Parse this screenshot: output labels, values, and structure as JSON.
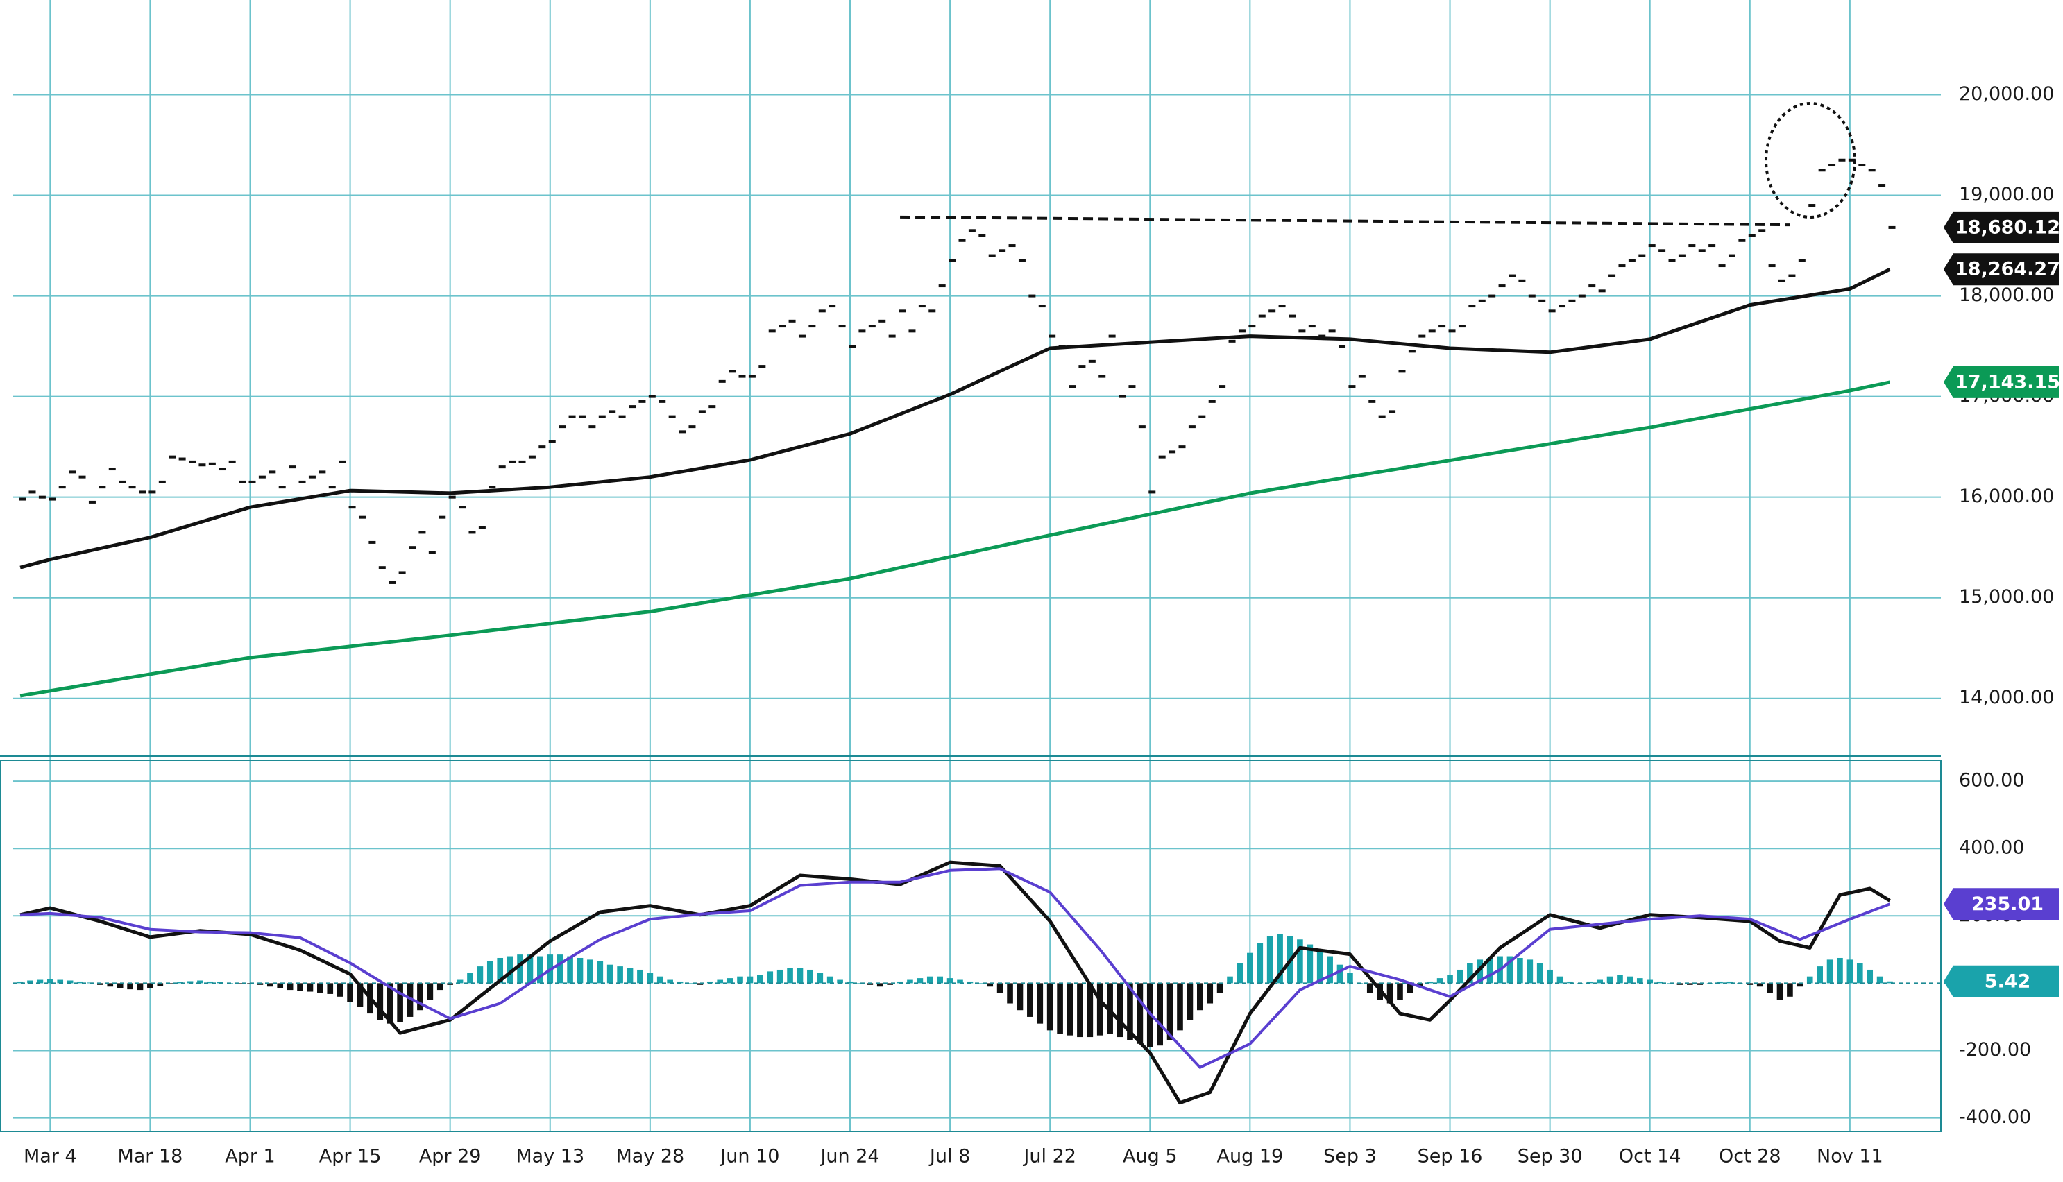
{
  "chart_data": [
    {
      "type": "stock",
      "xlim": [
        -3.7,
        189.1
      ],
      "xticks": [
        {
          "value": 0,
          "label": "Mar 4"
        },
        {
          "value": 10,
          "label": "Mar 18"
        },
        {
          "value": 20,
          "label": "Apr 1"
        },
        {
          "value": 30,
          "label": "Apr 15"
        },
        {
          "value": 40,
          "label": "Apr 29"
        },
        {
          "value": 50,
          "label": "May 13"
        },
        {
          "value": 60,
          "label": "May 28"
        },
        {
          "value": 70,
          "label": "Jun 10"
        },
        {
          "value": 80,
          "label": "Jun 24"
        },
        {
          "value": 90,
          "label": "Jul 8"
        },
        {
          "value": 100,
          "label": "Jul 22"
        },
        {
          "value": 110,
          "label": "Aug 5"
        },
        {
          "value": 120,
          "label": "Aug 19"
        },
        {
          "value": 130,
          "label": "Sep 3"
        },
        {
          "value": 140,
          "label": "Sep 16"
        },
        {
          "value": 150,
          "label": "Sep 30"
        },
        {
          "value": 160,
          "label": "Oct 14"
        },
        {
          "value": 170,
          "label": "Oct 28"
        },
        {
          "value": 180,
          "label": "Nov 11"
        }
      ],
      "ylim": [
        13426,
        20941
      ],
      "yticks": [
        {
          "value": 14000,
          "label": "14,000.00"
        },
        {
          "value": 15000,
          "label": "15,000.00"
        },
        {
          "value": 16000,
          "label": "16,000.00"
        },
        {
          "value": 17000,
          "label": "17,000.00"
        },
        {
          "value": 18000,
          "label": "18,000.00"
        },
        {
          "value": 19000,
          "label": "19,000.00"
        },
        {
          "value": 20000,
          "label": "20,000.00"
        }
      ],
      "grid": true,
      "grid_color": "#6cc3cc",
      "series": [
        {
          "marker": "tick",
          "color": "#111111",
          "last_label": "18,680.12",
          "x": [
            -3,
            -2,
            -1,
            0,
            1,
            2,
            3,
            4,
            5,
            6,
            7,
            8,
            9,
            10,
            11,
            12,
            13,
            14,
            15,
            16,
            17,
            18,
            19,
            20,
            21,
            22,
            23,
            24,
            25,
            26,
            27,
            28,
            29,
            30,
            31,
            32,
            33,
            34,
            35,
            36,
            37,
            38,
            39,
            40,
            41,
            42,
            43,
            44,
            45,
            46,
            47,
            48,
            49,
            50,
            51,
            52,
            53,
            54,
            55,
            56,
            57,
            58,
            59,
            60,
            61,
            62,
            63,
            64,
            65,
            66,
            67,
            68,
            69,
            70,
            71,
            72,
            73,
            74,
            75,
            76,
            77,
            78,
            79,
            80,
            81,
            82,
            83,
            84,
            85,
            86,
            87,
            88,
            89,
            90,
            91,
            92,
            93,
            94,
            95,
            96,
            97,
            98,
            99,
            100,
            101,
            102,
            103,
            104,
            105,
            106,
            107,
            108,
            109,
            110,
            111,
            112,
            113,
            114,
            115,
            116,
            117,
            118,
            119,
            120,
            121,
            122,
            123,
            124,
            125,
            126,
            127,
            128,
            129,
            130,
            131,
            132,
            133,
            134,
            135,
            136,
            137,
            138,
            139,
            140,
            141,
            142,
            143,
            144,
            145,
            146,
            147,
            148,
            149,
            150,
            151,
            152,
            153,
            154,
            155,
            156,
            157,
            158,
            159,
            160,
            161,
            162,
            163,
            164,
            165,
            166,
            167,
            168,
            169,
            170,
            171,
            172,
            173,
            174,
            175,
            176,
            177,
            178,
            179,
            180,
            181,
            182,
            183,
            184
          ],
          "values": [
            15980,
            16050,
            16000,
            15980,
            16100,
            16250,
            16200,
            15950,
            16100,
            16280,
            16150,
            16100,
            16050,
            16050,
            16150,
            16400,
            16380,
            16350,
            16320,
            16330,
            16280,
            16350,
            16150,
            16150,
            16200,
            16250,
            16100,
            16300,
            16150,
            16200,
            16250,
            16100,
            16350,
            15900,
            15800,
            15550,
            15300,
            15150,
            15250,
            15500,
            15650,
            15450,
            15800,
            16000,
            15900,
            15650,
            15700,
            16100,
            16300,
            16350,
            16350,
            16400,
            16500,
            16550,
            16700,
            16800,
            16800,
            16700,
            16800,
            16850,
            16800,
            16900,
            16950,
            17000,
            16950,
            16800,
            16650,
            16700,
            16850,
            16900,
            17150,
            17250,
            17200,
            17200,
            17300,
            17650,
            17700,
            17750,
            17600,
            17700,
            17850,
            17900,
            17700,
            17500,
            17650,
            17700,
            17750,
            17600,
            17850,
            17650,
            17900,
            17850,
            18100,
            18350,
            18550,
            18650,
            18600,
            18400,
            18450,
            18500,
            18350,
            18000,
            17900,
            17600,
            17500,
            17100,
            17300,
            17350,
            17200,
            17600,
            17000,
            17100,
            16700,
            16050,
            16400,
            16450,
            16500,
            16700,
            16800,
            16950,
            17100,
            17550,
            17650,
            17700,
            17800,
            17850,
            17900,
            17800,
            17650,
            17700,
            17600,
            17650,
            17500,
            17100,
            17200,
            16950,
            16800,
            16850,
            17250,
            17450,
            17600,
            17650,
            17700,
            17650,
            17700,
            17900,
            17950,
            18000,
            18100,
            18200,
            18150,
            18000,
            17950,
            17850,
            17900,
            17950,
            18000,
            18100,
            18050,
            18200,
            18300,
            18350,
            18400,
            18500,
            18450,
            18350,
            18400,
            18500,
            18450,
            18500,
            18300,
            18400,
            18550,
            18600,
            18650,
            18300,
            18150,
            18200,
            18350,
            18900,
            19250,
            19300,
            19350,
            19350,
            19300,
            19250,
            19100,
            18680.12
          ]
        },
        {
          "marker": "line",
          "color": "#111111",
          "last_label": "18,264.27",
          "x": [
            -3,
            0,
            10,
            20,
            30,
            40,
            50,
            60,
            70,
            80,
            90,
            100,
            110,
            120,
            130,
            140,
            150,
            160,
            170,
            180,
            184
          ],
          "values": [
            15300,
            15380,
            15600,
            15900,
            16065,
            16040,
            16100,
            16200,
            16370,
            16630,
            17020,
            17480,
            17540,
            17600,
            17570,
            17480,
            17440,
            17570,
            17910,
            18070,
            18264.27
          ]
        },
        {
          "marker": "line",
          "color": "#0b9a56",
          "last_label": "17,143.15",
          "x": [
            -3,
            20,
            40,
            60,
            80,
            100,
            120,
            140,
            160,
            180,
            184
          ],
          "values": [
            14026,
            14405,
            14627,
            14863,
            15190,
            15621,
            16039,
            16366,
            16693,
            17059,
            17143.15
          ]
        }
      ],
      "resistance_line": {
        "x": [
          85,
          174
        ],
        "values": [
          18784,
          18706
        ]
      }
    },
    {
      "type": "macd",
      "ylim": [
        -440,
        662
      ],
      "yticks": [
        {
          "value": 600,
          "label": "600.00"
        },
        {
          "value": 400,
          "label": "400.00"
        },
        {
          "value": 200,
          "label": "200.00"
        },
        {
          "value": -200,
          "label": "-200.00"
        },
        {
          "value": -400,
          "label": "-400.00"
        }
      ],
      "grid": true,
      "positive_color": "#1aa3ab",
      "negative_color": "#111111",
      "last_label": "5.42",
      "x": [
        -3,
        -2,
        -1,
        0,
        1,
        2,
        3,
        4,
        5,
        6,
        7,
        8,
        9,
        10,
        11,
        12,
        13,
        14,
        15,
        16,
        17,
        18,
        19,
        20,
        21,
        22,
        23,
        24,
        25,
        26,
        27,
        28,
        29,
        30,
        31,
        32,
        33,
        34,
        35,
        36,
        37,
        38,
        39,
        40,
        41,
        42,
        43,
        44,
        45,
        46,
        47,
        48,
        49,
        50,
        51,
        52,
        53,
        54,
        55,
        56,
        57,
        58,
        59,
        60,
        61,
        62,
        63,
        64,
        65,
        66,
        67,
        68,
        69,
        70,
        71,
        72,
        73,
        74,
        75,
        76,
        77,
        78,
        79,
        80,
        81,
        82,
        83,
        84,
        85,
        86,
        87,
        88,
        89,
        90,
        91,
        92,
        93,
        94,
        95,
        96,
        97,
        98,
        99,
        100,
        101,
        102,
        103,
        104,
        105,
        106,
        107,
        108,
        109,
        110,
        111,
        112,
        113,
        114,
        115,
        116,
        117,
        118,
        119,
        120,
        121,
        122,
        123,
        124,
        125,
        126,
        127,
        128,
        129,
        130,
        131,
        132,
        133,
        134,
        135,
        136,
        137,
        138,
        139,
        140,
        141,
        142,
        143,
        144,
        145,
        146,
        147,
        148,
        149,
        150,
        151,
        152,
        153,
        154,
        155,
        156,
        157,
        158,
        159,
        160,
        161,
        162,
        163,
        164,
        165,
        166,
        167,
        168,
        169,
        170,
        171,
        172,
        173,
        174,
        175,
        176,
        177,
        178,
        179,
        180,
        181,
        182,
        183,
        184
      ],
      "values": [
        5,
        8,
        10,
        12,
        10,
        8,
        5,
        2,
        -5,
        -10,
        -15,
        -18,
        -20,
        -15,
        -8,
        -3,
        3,
        6,
        8,
        5,
        3,
        0,
        -2,
        -3,
        -5,
        -10,
        -15,
        -20,
        -22,
        -25,
        -28,
        -32,
        -40,
        -55,
        -70,
        -90,
        -110,
        -120,
        -115,
        -100,
        -80,
        -50,
        -20,
        -5,
        10,
        30,
        50,
        65,
        75,
        80,
        85,
        85,
        80,
        85,
        85,
        80,
        75,
        70,
        65,
        55,
        50,
        45,
        40,
        30,
        20,
        10,
        5,
        0,
        -5,
        5,
        10,
        15,
        20,
        20,
        25,
        35,
        40,
        45,
        45,
        40,
        30,
        20,
        10,
        5,
        0,
        -5,
        -10,
        -5,
        5,
        10,
        15,
        20,
        20,
        15,
        10,
        5,
        0,
        -10,
        -30,
        -60,
        -80,
        -100,
        -120,
        -140,
        -150,
        -155,
        -160,
        -160,
        -155,
        -150,
        -160,
        -170,
        -180,
        -190,
        -185,
        -170,
        -140,
        -110,
        -80,
        -60,
        -30,
        20,
        60,
        90,
        120,
        140,
        145,
        140,
        130,
        115,
        100,
        80,
        55,
        30,
        0,
        -30,
        -50,
        -60,
        -50,
        -30,
        -10,
        5,
        15,
        25,
        40,
        60,
        70,
        75,
        80,
        80,
        75,
        70,
        60,
        40,
        20,
        5,
        0,
        5,
        10,
        20,
        25,
        20,
        15,
        10,
        5,
        0,
        -5,
        -5,
        -5,
        0,
        5,
        5,
        0,
        -5,
        -10,
        -30,
        -50,
        -40,
        -10,
        20,
        50,
        70,
        75,
        70,
        60,
        40,
        20,
        5.42
      ],
      "series": [
        {
          "color": "#111111",
          "x": [
            -3,
            0,
            5,
            10,
            15,
            20,
            25,
            30,
            35,
            40,
            45,
            50,
            55,
            60,
            65,
            70,
            75,
            80,
            85,
            90,
            95,
            100,
            105,
            110,
            113,
            116,
            120,
            125,
            130,
            135,
            138,
            140,
            145,
            150,
            155,
            160,
            165,
            170,
            173,
            176,
            179,
            182,
            184
          ],
          "values": [
            203,
            223,
            184,
            137,
            156,
            145,
            98,
            27,
            -148,
            -109,
            8,
            125,
            211,
            230,
            203,
            230,
            320,
            309,
            293,
            359,
            348,
            184,
            -51,
            -207,
            -355,
            -324,
            -90,
            105,
            86,
            -90,
            -109,
            -51,
            105,
            203,
            164,
            203,
            195,
            184,
            125,
            105,
            262,
            281,
            245
          ]
        },
        {
          "color": "#5a3fd0",
          "last_label": "235.01",
          "x": [
            -3,
            0,
            5,
            10,
            15,
            20,
            25,
            30,
            35,
            40,
            45,
            50,
            55,
            60,
            65,
            70,
            75,
            80,
            85,
            90,
            95,
            100,
            105,
            110,
            115,
            120,
            125,
            130,
            135,
            140,
            145,
            150,
            155,
            160,
            165,
            170,
            175,
            180,
            184
          ],
          "values": [
            203,
            207,
            195,
            160,
            152,
            150,
            135,
            60,
            -30,
            -105,
            -60,
            40,
            130,
            190,
            205,
            215,
            290,
            300,
            300,
            335,
            340,
            270,
            100,
            -90,
            -250,
            -180,
            -20,
            50,
            10,
            -40,
            40,
            160,
            175,
            190,
            200,
            190,
            130,
            190,
            235.01
          ]
        }
      ]
    }
  ]
}
